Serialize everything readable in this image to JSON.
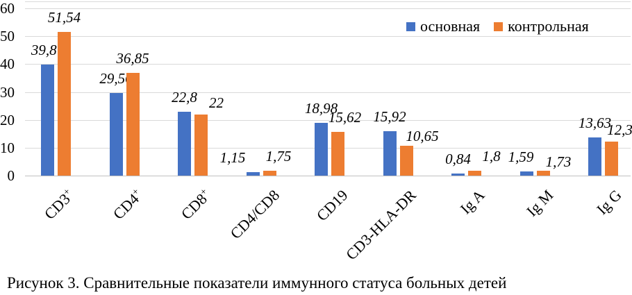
{
  "chart_data": {
    "type": "bar",
    "title": "",
    "categories": [
      {
        "text": "CD3",
        "sup": "+"
      },
      {
        "text": "CD4",
        "sup": "+"
      },
      {
        "text": "CD8",
        "sup": "+"
      },
      {
        "text": "CD4/CD8",
        "sup": ""
      },
      {
        "text": "CD19",
        "sup": ""
      },
      {
        "text": "CD3-HLA-DR",
        "sup": ""
      },
      {
        "text": "Ig A",
        "sup": ""
      },
      {
        "text": "Ig M",
        "sup": ""
      },
      {
        "text": "Ig G",
        "sup": ""
      }
    ],
    "series": [
      {
        "name": "основная",
        "color": "#4472C4",
        "values": [
          39.87,
          29.56,
          22.8,
          1.15,
          18.98,
          15.92,
          0.84,
          1.59,
          13.63
        ],
        "labels": [
          "39,87",
          "29,56",
          "22,8",
          "1,15",
          "18,98",
          "15,92",
          "0,84",
          "1,59",
          "13,63"
        ]
      },
      {
        "name": "контрольная",
        "color": "#ED7D31",
        "values": [
          51.54,
          36.85,
          22,
          1.75,
          15.62,
          10.65,
          1.8,
          1.73,
          12.3
        ],
        "labels": [
          "51,54",
          "36,85",
          "22",
          "1,75",
          "15,62",
          "10,65",
          "1,8",
          "1,73",
          "12,3"
        ]
      }
    ],
    "y_axis": {
      "min": 0,
      "max": 60,
      "step": 10,
      "ticks": [
        "0",
        "10",
        "20",
        "30",
        "40",
        "50",
        "60"
      ]
    },
    "legend_position": "top-right",
    "grid": true
  },
  "colors": {
    "series_main": "#4472C4",
    "series_control": "#ED7D31",
    "gridline": "#d9d9d9",
    "text": "#000000"
  },
  "caption": "Рисунок 3. Сравнительные показатели иммунного статуса больных детей"
}
